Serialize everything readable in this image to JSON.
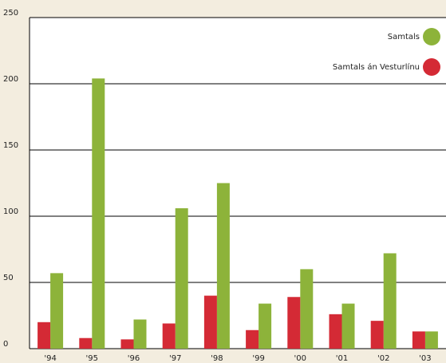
{
  "chart_data": {
    "type": "bar",
    "categories": [
      "'94",
      "'95",
      "'96",
      "'97",
      "'98",
      "'99",
      "'00",
      "'01",
      "'02",
      "'03"
    ],
    "series": [
      {
        "name": "Samtals",
        "color": "#8db33a",
        "values": [
          57,
          204,
          22,
          106,
          125,
          34,
          60,
          34,
          72,
          13
        ]
      },
      {
        "name": "Samtals án Vesturlínu",
        "color": "#d42a35",
        "values": [
          20,
          8,
          7,
          19,
          40,
          14,
          39,
          26,
          21,
          13
        ]
      }
    ],
    "ylim": [
      0,
      250
    ],
    "yticks": [
      0,
      50,
      100,
      150,
      200,
      250
    ],
    "grid": true,
    "legend": "top-right"
  }
}
